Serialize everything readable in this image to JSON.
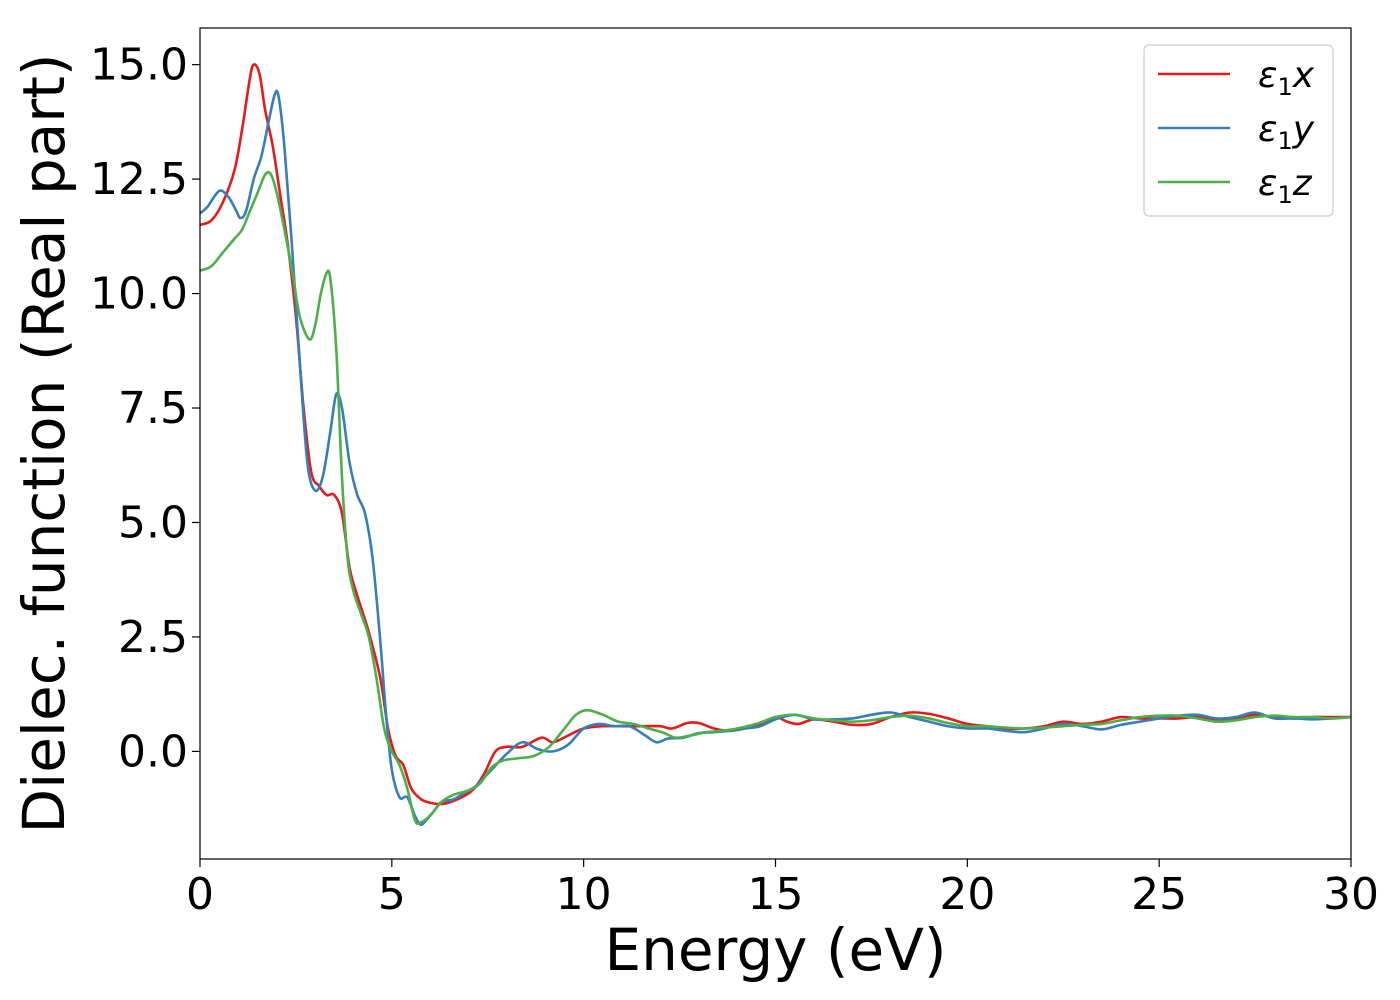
{
  "chart_data": {
    "type": "line",
    "title": "",
    "xlabel": "Energy (eV)",
    "ylabel": "Dielec. function (Real part)",
    "xlim": [
      0,
      30
    ],
    "ylim": [
      -2.35,
      15.8
    ],
    "xticks": [
      0,
      5,
      10,
      15,
      20,
      25,
      30
    ],
    "xtick_labels": [
      "0",
      "5",
      "10",
      "15",
      "20",
      "25",
      "30"
    ],
    "yticks": [
      0,
      2.5,
      5,
      7.5,
      10,
      12.5,
      15
    ],
    "ytick_labels": [
      "0.0",
      "2.5",
      "5.0",
      "7.5",
      "10.0",
      "12.5",
      "15.0"
    ],
    "grid": false,
    "legend_position": "top-right",
    "series": [
      {
        "name": "ε1x",
        "legend": {
          "symbol": "ε",
          "sub": "1",
          "var": "x"
        },
        "color": "#e41a1c",
        "points": [
          [
            0,
            11.5
          ],
          [
            0.3,
            11.6
          ],
          [
            0.6,
            12.0
          ],
          [
            0.9,
            12.7
          ],
          [
            1.1,
            13.6
          ],
          [
            1.3,
            14.7
          ],
          [
            1.4,
            15.0
          ],
          [
            1.55,
            14.8
          ],
          [
            1.7,
            14.0
          ],
          [
            1.9,
            13.2
          ],
          [
            2.1,
            12.1
          ],
          [
            2.3,
            11.0
          ],
          [
            2.5,
            9.5
          ],
          [
            2.7,
            7.5
          ],
          [
            2.9,
            6.1
          ],
          [
            3.1,
            5.8
          ],
          [
            3.3,
            5.6
          ],
          [
            3.5,
            5.6
          ],
          [
            3.7,
            5.2
          ],
          [
            3.9,
            4.0
          ],
          [
            4.1,
            3.4
          ],
          [
            4.4,
            2.6
          ],
          [
            4.7,
            1.6
          ],
          [
            4.9,
            0.5
          ],
          [
            5.1,
            -0.1
          ],
          [
            5.3,
            -0.3
          ],
          [
            5.5,
            -0.8
          ],
          [
            5.7,
            -1.0
          ],
          [
            5.9,
            -1.1
          ],
          [
            6.3,
            -1.15
          ],
          [
            6.7,
            -1.05
          ],
          [
            7.1,
            -0.85
          ],
          [
            7.4,
            -0.5
          ],
          [
            7.7,
            0.0
          ],
          [
            8.0,
            0.1
          ],
          [
            8.4,
            0.1
          ],
          [
            8.9,
            0.3
          ],
          [
            9.2,
            0.2
          ],
          [
            9.6,
            0.35
          ],
          [
            10.0,
            0.5
          ],
          [
            10.5,
            0.55
          ],
          [
            11.0,
            0.55
          ],
          [
            11.5,
            0.55
          ],
          [
            12.0,
            0.55
          ],
          [
            12.3,
            0.5
          ],
          [
            12.7,
            0.62
          ],
          [
            13.0,
            0.62
          ],
          [
            13.4,
            0.5
          ],
          [
            13.8,
            0.45
          ],
          [
            14.2,
            0.5
          ],
          [
            14.7,
            0.6
          ],
          [
            15.0,
            0.75
          ],
          [
            15.3,
            0.65
          ],
          [
            15.6,
            0.6
          ],
          [
            16.0,
            0.7
          ],
          [
            16.5,
            0.65
          ],
          [
            17.0,
            0.58
          ],
          [
            17.5,
            0.6
          ],
          [
            18.0,
            0.75
          ],
          [
            18.5,
            0.85
          ],
          [
            19.0,
            0.82
          ],
          [
            19.5,
            0.72
          ],
          [
            20.0,
            0.6
          ],
          [
            20.5,
            0.55
          ],
          [
            21.0,
            0.5
          ],
          [
            21.5,
            0.5
          ],
          [
            22.0,
            0.55
          ],
          [
            22.5,
            0.65
          ],
          [
            23.0,
            0.6
          ],
          [
            23.5,
            0.65
          ],
          [
            24.0,
            0.75
          ],
          [
            24.5,
            0.72
          ],
          [
            25.0,
            0.72
          ],
          [
            25.5,
            0.72
          ],
          [
            26.0,
            0.75
          ],
          [
            26.5,
            0.7
          ],
          [
            27.0,
            0.72
          ],
          [
            27.5,
            0.8
          ],
          [
            28.0,
            0.75
          ],
          [
            28.5,
            0.72
          ],
          [
            29.0,
            0.75
          ],
          [
            29.5,
            0.75
          ],
          [
            30.0,
            0.75
          ]
        ]
      },
      {
        "name": "ε1y",
        "legend": {
          "symbol": "ε",
          "sub": "1",
          "var": "y"
        },
        "color": "#377eb8",
        "points": [
          [
            0,
            11.75
          ],
          [
            0.2,
            11.9
          ],
          [
            0.4,
            12.15
          ],
          [
            0.55,
            12.25
          ],
          [
            0.75,
            12.1
          ],
          [
            0.95,
            11.8
          ],
          [
            1.05,
            11.65
          ],
          [
            1.2,
            11.8
          ],
          [
            1.4,
            12.5
          ],
          [
            1.6,
            13.0
          ],
          [
            1.8,
            13.8
          ],
          [
            1.95,
            14.35
          ],
          [
            2.05,
            14.3
          ],
          [
            2.2,
            13.2
          ],
          [
            2.4,
            11.0
          ],
          [
            2.6,
            8.5
          ],
          [
            2.8,
            6.3
          ],
          [
            3.0,
            5.7
          ],
          [
            3.2,
            6.0
          ],
          [
            3.4,
            7.0
          ],
          [
            3.55,
            7.8
          ],
          [
            3.7,
            7.5
          ],
          [
            3.9,
            6.3
          ],
          [
            4.1,
            5.6
          ],
          [
            4.3,
            5.2
          ],
          [
            4.5,
            4.2
          ],
          [
            4.7,
            2.4
          ],
          [
            4.85,
            0.8
          ],
          [
            5.0,
            -0.4
          ],
          [
            5.2,
            -1.0
          ],
          [
            5.4,
            -1.0
          ],
          [
            5.6,
            -1.4
          ],
          [
            5.75,
            -1.6
          ],
          [
            5.9,
            -1.5
          ],
          [
            6.1,
            -1.3
          ],
          [
            6.3,
            -1.1
          ],
          [
            6.6,
            -1.05
          ],
          [
            6.9,
            -0.9
          ],
          [
            7.2,
            -0.75
          ],
          [
            7.6,
            -0.4
          ],
          [
            8.0,
            -0.05
          ],
          [
            8.4,
            0.2
          ],
          [
            8.8,
            0.05
          ],
          [
            9.2,
            0.0
          ],
          [
            9.6,
            0.15
          ],
          [
            10.0,
            0.5
          ],
          [
            10.4,
            0.6
          ],
          [
            10.8,
            0.55
          ],
          [
            11.2,
            0.55
          ],
          [
            11.6,
            0.35
          ],
          [
            11.9,
            0.2
          ],
          [
            12.2,
            0.28
          ],
          [
            12.6,
            0.3
          ],
          [
            13.0,
            0.4
          ],
          [
            13.4,
            0.42
          ],
          [
            13.8,
            0.45
          ],
          [
            14.2,
            0.5
          ],
          [
            14.6,
            0.55
          ],
          [
            15.0,
            0.7
          ],
          [
            15.5,
            0.8
          ],
          [
            16.0,
            0.7
          ],
          [
            16.5,
            0.7
          ],
          [
            17.0,
            0.72
          ],
          [
            17.5,
            0.8
          ],
          [
            18.0,
            0.85
          ],
          [
            18.5,
            0.75
          ],
          [
            19.0,
            0.65
          ],
          [
            19.5,
            0.55
          ],
          [
            20.0,
            0.5
          ],
          [
            20.5,
            0.5
          ],
          [
            21.0,
            0.45
          ],
          [
            21.5,
            0.42
          ],
          [
            22.0,
            0.5
          ],
          [
            22.5,
            0.6
          ],
          [
            23.0,
            0.55
          ],
          [
            23.5,
            0.48
          ],
          [
            24.0,
            0.58
          ],
          [
            24.5,
            0.65
          ],
          [
            25.0,
            0.72
          ],
          [
            25.5,
            0.78
          ],
          [
            26.0,
            0.8
          ],
          [
            26.5,
            0.72
          ],
          [
            27.0,
            0.75
          ],
          [
            27.5,
            0.85
          ],
          [
            28.0,
            0.72
          ],
          [
            28.5,
            0.72
          ],
          [
            29.0,
            0.7
          ],
          [
            29.5,
            0.72
          ],
          [
            30.0,
            0.75
          ]
        ]
      },
      {
        "name": "ε1z",
        "legend": {
          "symbol": "ε",
          "sub": "1",
          "var": "z"
        },
        "color": "#4daf4a",
        "points": [
          [
            0,
            10.5
          ],
          [
            0.3,
            10.6
          ],
          [
            0.6,
            10.9
          ],
          [
            0.9,
            11.2
          ],
          [
            1.1,
            11.4
          ],
          [
            1.3,
            11.8
          ],
          [
            1.5,
            12.2
          ],
          [
            1.7,
            12.6
          ],
          [
            1.85,
            12.6
          ],
          [
            2.0,
            12.2
          ],
          [
            2.2,
            11.4
          ],
          [
            2.4,
            10.5
          ],
          [
            2.6,
            9.5
          ],
          [
            2.85,
            9.0
          ],
          [
            3.0,
            9.3
          ],
          [
            3.15,
            10.0
          ],
          [
            3.3,
            10.45
          ],
          [
            3.4,
            10.3
          ],
          [
            3.55,
            8.8
          ],
          [
            3.7,
            6.0
          ],
          [
            3.85,
            4.2
          ],
          [
            4.0,
            3.5
          ],
          [
            4.2,
            3.0
          ],
          [
            4.4,
            2.5
          ],
          [
            4.6,
            1.6
          ],
          [
            4.8,
            0.5
          ],
          [
            5.0,
            0.0
          ],
          [
            5.2,
            -0.3
          ],
          [
            5.4,
            -0.8
          ],
          [
            5.6,
            -1.5
          ],
          [
            5.75,
            -1.55
          ],
          [
            6.0,
            -1.4
          ],
          [
            6.3,
            -1.1
          ],
          [
            6.6,
            -0.95
          ],
          [
            7.0,
            -0.85
          ],
          [
            7.3,
            -0.7
          ],
          [
            7.6,
            -0.35
          ],
          [
            7.9,
            -0.2
          ],
          [
            8.3,
            -0.15
          ],
          [
            8.7,
            -0.1
          ],
          [
            9.1,
            0.1
          ],
          [
            9.5,
            0.5
          ],
          [
            9.8,
            0.8
          ],
          [
            10.1,
            0.9
          ],
          [
            10.5,
            0.8
          ],
          [
            10.9,
            0.65
          ],
          [
            11.3,
            0.6
          ],
          [
            11.7,
            0.5
          ],
          [
            12.1,
            0.4
          ],
          [
            12.4,
            0.3
          ],
          [
            12.8,
            0.35
          ],
          [
            13.2,
            0.42
          ],
          [
            13.6,
            0.45
          ],
          [
            14.0,
            0.5
          ],
          [
            14.5,
            0.6
          ],
          [
            15.0,
            0.75
          ],
          [
            15.5,
            0.8
          ],
          [
            16.0,
            0.72
          ],
          [
            16.5,
            0.68
          ],
          [
            17.0,
            0.65
          ],
          [
            17.5,
            0.68
          ],
          [
            18.0,
            0.75
          ],
          [
            18.5,
            0.78
          ],
          [
            19.0,
            0.72
          ],
          [
            19.5,
            0.62
          ],
          [
            20.0,
            0.55
          ],
          [
            20.5,
            0.55
          ],
          [
            21.0,
            0.52
          ],
          [
            21.5,
            0.5
          ],
          [
            22.0,
            0.52
          ],
          [
            22.5,
            0.55
          ],
          [
            23.0,
            0.58
          ],
          [
            23.5,
            0.6
          ],
          [
            24.0,
            0.68
          ],
          [
            24.5,
            0.75
          ],
          [
            25.0,
            0.78
          ],
          [
            25.5,
            0.78
          ],
          [
            26.0,
            0.72
          ],
          [
            26.5,
            0.65
          ],
          [
            27.0,
            0.68
          ],
          [
            27.5,
            0.75
          ],
          [
            28.0,
            0.78
          ],
          [
            28.5,
            0.75
          ],
          [
            29.0,
            0.75
          ],
          [
            29.5,
            0.72
          ],
          [
            30.0,
            0.75
          ]
        ]
      }
    ]
  }
}
